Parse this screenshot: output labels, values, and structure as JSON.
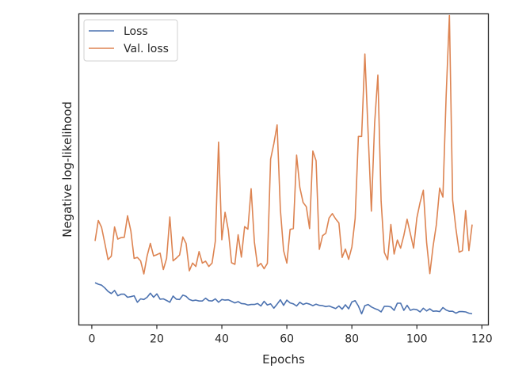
{
  "chart_data": {
    "type": "line",
    "title": "",
    "xlabel": "Epochs",
    "ylabel": "Negative log-likelihood",
    "xlim": [
      -4,
      122
    ],
    "ylim": [
      0.0,
      1.0
    ],
    "xticks": [
      0,
      20,
      40,
      60,
      80,
      100,
      120
    ],
    "yticks_visible": false,
    "grid": false,
    "legend_position": "top-left",
    "x": [
      1,
      2,
      3,
      4,
      5,
      6,
      7,
      8,
      9,
      10,
      11,
      12,
      13,
      14,
      15,
      16,
      17,
      18,
      19,
      20,
      21,
      22,
      23,
      24,
      25,
      26,
      27,
      28,
      29,
      30,
      31,
      32,
      33,
      34,
      35,
      36,
      37,
      38,
      39,
      40,
      41,
      42,
      43,
      44,
      45,
      46,
      47,
      48,
      49,
      50,
      51,
      52,
      53,
      54,
      55,
      56,
      57,
      58,
      59,
      60,
      61,
      62,
      63,
      64,
      65,
      66,
      67,
      68,
      69,
      70,
      71,
      72,
      73,
      74,
      75,
      76,
      77,
      78,
      79,
      80,
      81,
      82,
      83,
      84,
      85,
      86,
      87,
      88,
      89,
      90,
      91,
      92,
      93,
      94,
      95,
      96,
      97,
      98,
      99,
      100,
      101,
      102,
      103,
      104,
      105,
      106,
      107,
      108,
      109,
      110,
      111,
      112,
      113,
      114,
      115,
      116,
      117
    ],
    "series": [
      {
        "name": "Loss",
        "color": "#4c72b0",
        "values": [
          0.136,
          0.131,
          0.128,
          0.119,
          0.108,
          0.101,
          0.111,
          0.094,
          0.099,
          0.099,
          0.089,
          0.091,
          0.094,
          0.073,
          0.084,
          0.082,
          0.089,
          0.102,
          0.089,
          0.1,
          0.083,
          0.084,
          0.079,
          0.073,
          0.093,
          0.083,
          0.082,
          0.096,
          0.092,
          0.082,
          0.078,
          0.08,
          0.077,
          0.077,
          0.086,
          0.078,
          0.077,
          0.084,
          0.073,
          0.082,
          0.08,
          0.081,
          0.076,
          0.071,
          0.075,
          0.069,
          0.068,
          0.064,
          0.066,
          0.066,
          0.069,
          0.061,
          0.076,
          0.064,
          0.068,
          0.054,
          0.067,
          0.081,
          0.063,
          0.08,
          0.071,
          0.068,
          0.061,
          0.073,
          0.066,
          0.07,
          0.067,
          0.062,
          0.067,
          0.063,
          0.062,
          0.059,
          0.061,
          0.057,
          0.053,
          0.061,
          0.051,
          0.065,
          0.052,
          0.074,
          0.078,
          0.061,
          0.036,
          0.062,
          0.066,
          0.058,
          0.053,
          0.049,
          0.042,
          0.06,
          0.06,
          0.058,
          0.047,
          0.07,
          0.07,
          0.047,
          0.063,
          0.047,
          0.051,
          0.049,
          0.042,
          0.054,
          0.045,
          0.052,
          0.044,
          0.045,
          0.043,
          0.056,
          0.048,
          0.044,
          0.044,
          0.038,
          0.043,
          0.043,
          0.042,
          0.038,
          0.036
        ]
      },
      {
        "name": "Val. loss",
        "color": "#dd8452",
        "values": [
          0.27,
          0.336,
          0.314,
          0.263,
          0.21,
          0.221,
          0.315,
          0.276,
          0.281,
          0.282,
          0.351,
          0.302,
          0.214,
          0.217,
          0.206,
          0.164,
          0.222,
          0.262,
          0.222,
          0.226,
          0.231,
          0.178,
          0.214,
          0.347,
          0.206,
          0.215,
          0.225,
          0.283,
          0.262,
          0.174,
          0.199,
          0.188,
          0.236,
          0.199,
          0.205,
          0.188,
          0.199,
          0.269,
          0.588,
          0.274,
          0.362,
          0.305,
          0.2,
          0.195,
          0.29,
          0.218,
          0.316,
          0.308,
          0.438,
          0.267,
          0.188,
          0.198,
          0.181,
          0.198,
          0.533,
          0.583,
          0.643,
          0.372,
          0.239,
          0.199,
          0.307,
          0.31,
          0.546,
          0.442,
          0.394,
          0.38,
          0.31,
          0.559,
          0.528,
          0.243,
          0.287,
          0.295,
          0.344,
          0.358,
          0.341,
          0.328,
          0.217,
          0.244,
          0.211,
          0.251,
          0.342,
          0.606,
          0.606,
          0.871,
          0.616,
          0.366,
          0.648,
          0.803,
          0.398,
          0.233,
          0.21,
          0.323,
          0.228,
          0.273,
          0.247,
          0.288,
          0.34,
          0.294,
          0.247,
          0.344,
          0.394,
          0.433,
          0.266,
          0.165,
          0.253,
          0.322,
          0.44,
          0.411,
          0.738,
          0.995,
          0.401,
          0.31,
          0.234,
          0.239,
          0.368,
          0.239,
          0.323
        ]
      }
    ]
  }
}
